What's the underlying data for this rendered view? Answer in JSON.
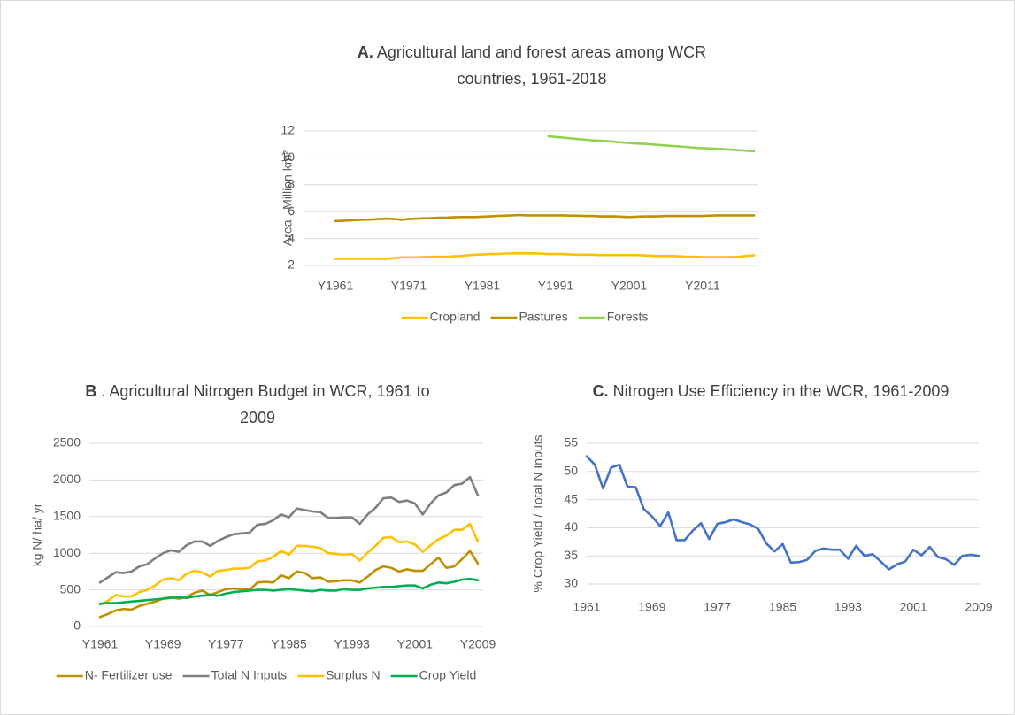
{
  "chart_data": [
    {
      "type": "line",
      "panel": "A.",
      "title": "Agricultural land and forest areas among WCR countries, 1961-2018",
      "ylabel": "Area , Million km²",
      "categories": [
        "Y1961",
        null,
        null,
        null,
        null,
        null,
        null,
        null,
        null,
        null,
        "Y1971",
        null,
        null,
        null,
        null,
        null,
        null,
        null,
        null,
        null,
        "Y1981",
        null,
        null,
        null,
        null,
        null,
        null,
        null,
        null,
        null,
        "Y1991",
        null,
        null,
        null,
        null,
        null,
        null,
        null,
        null,
        null,
        "Y2001",
        null,
        null,
        null,
        null,
        null,
        null,
        null,
        null,
        null,
        "Y2011",
        null,
        null,
        null,
        null,
        null,
        null,
        null
      ],
      "ylim": [
        2,
        12
      ],
      "yticks": [
        2,
        4,
        6,
        8,
        10,
        12
      ],
      "grid": true,
      "legend": "bottom",
      "series": [
        {
          "name": "Cropland",
          "color": "#ffc000",
          "values": [
            2.5,
            2.5,
            2.5,
            2.5,
            2.5,
            2.5,
            2.5,
            2.5,
            2.55,
            2.6,
            2.6,
            2.6,
            2.62,
            2.65,
            2.65,
            2.65,
            2.68,
            2.7,
            2.75,
            2.8,
            2.82,
            2.85,
            2.85,
            2.88,
            2.9,
            2.9,
            2.9,
            2.9,
            2.88,
            2.85,
            2.85,
            2.85,
            2.82,
            2.8,
            2.8,
            2.8,
            2.78,
            2.78,
            2.78,
            2.78,
            2.78,
            2.78,
            2.75,
            2.72,
            2.7,
            2.7,
            2.7,
            2.68,
            2.65,
            2.65,
            2.62,
            2.62,
            2.62,
            2.62,
            2.62,
            2.65,
            2.72,
            2.75
          ]
        },
        {
          "name": "Pastures",
          "color": "#bf9000",
          "values": [
            5.3,
            5.32,
            5.35,
            5.38,
            5.4,
            5.42,
            5.45,
            5.48,
            5.45,
            5.4,
            5.45,
            5.48,
            5.5,
            5.52,
            5.55,
            5.55,
            5.58,
            5.6,
            5.6,
            5.6,
            5.62,
            5.65,
            5.68,
            5.7,
            5.72,
            5.75,
            5.72,
            5.72,
            5.72,
            5.72,
            5.72,
            5.72,
            5.7,
            5.7,
            5.68,
            5.68,
            5.65,
            5.65,
            5.65,
            5.62,
            5.6,
            5.62,
            5.65,
            5.65,
            5.65,
            5.68,
            5.68,
            5.68,
            5.68,
            5.68,
            5.68,
            5.7,
            5.72,
            5.72,
            5.72,
            5.72,
            5.72,
            5.72
          ]
        },
        {
          "name": "Forests",
          "color": "#92d050",
          "values": [
            null,
            null,
            null,
            null,
            null,
            null,
            null,
            null,
            null,
            null,
            null,
            null,
            null,
            null,
            null,
            null,
            null,
            null,
            null,
            null,
            null,
            null,
            null,
            null,
            null,
            null,
            null,
            null,
            null,
            11.6,
            11.55,
            11.5,
            11.45,
            11.4,
            11.35,
            11.3,
            11.27,
            11.24,
            11.2,
            11.15,
            11.1,
            11.07,
            11.04,
            11.0,
            10.96,
            10.92,
            10.88,
            10.84,
            10.8,
            10.75,
            10.72,
            10.7,
            10.67,
            10.64,
            10.6,
            10.57,
            10.53,
            10.5
          ]
        }
      ]
    },
    {
      "type": "line",
      "panel": "B",
      "title": ". Agricultural Nitrogen Budget in WCR, 1961 to 2009",
      "ylabel": "kg N/ ha/ yr",
      "categories": [
        "Y1961",
        null,
        null,
        null,
        null,
        null,
        null,
        null,
        "Y1969",
        null,
        null,
        null,
        null,
        null,
        null,
        null,
        "Y1977",
        null,
        null,
        null,
        null,
        null,
        null,
        null,
        "Y1985",
        null,
        null,
        null,
        null,
        null,
        null,
        null,
        "Y1993",
        null,
        null,
        null,
        null,
        null,
        null,
        null,
        "Y2001",
        null,
        null,
        null,
        null,
        null,
        null,
        null,
        "Y2009"
      ],
      "ylim": [
        0,
        2500
      ],
      "yticks": [
        0,
        500,
        1000,
        1500,
        2000,
        2500
      ],
      "grid": true,
      "legend": "bottom",
      "series": [
        {
          "name": "N- Fertilizer use",
          "color": "#bf9000",
          "values": [
            130,
            170,
            220,
            240,
            230,
            280,
            310,
            340,
            380,
            400,
            380,
            400,
            460,
            490,
            430,
            470,
            510,
            520,
            510,
            500,
            600,
            610,
            600,
            700,
            660,
            750,
            730,
            660,
            670,
            610,
            620,
            630,
            630,
            600,
            680,
            770,
            820,
            800,
            750,
            780,
            760,
            760,
            850,
            940,
            800,
            820,
            920,
            1030,
            860
          ]
        },
        {
          "name": "Total N Inputs",
          "color": "#7f7f7f",
          "values": [
            600,
            670,
            740,
            730,
            750,
            820,
            850,
            930,
            1000,
            1040,
            1020,
            1110,
            1160,
            1160,
            1100,
            1170,
            1220,
            1260,
            1270,
            1280,
            1390,
            1400,
            1450,
            1530,
            1490,
            1610,
            1590,
            1570,
            1560,
            1480,
            1480,
            1490,
            1490,
            1400,
            1530,
            1620,
            1750,
            1760,
            1700,
            1720,
            1680,
            1530,
            1680,
            1790,
            1830,
            1930,
            1950,
            2040,
            1790
          ]
        },
        {
          "name": "Surplus N",
          "color": "#ffc000",
          "values": [
            300,
            350,
            430,
            410,
            410,
            470,
            500,
            560,
            640,
            660,
            630,
            720,
            760,
            740,
            680,
            760,
            770,
            790,
            790,
            800,
            890,
            900,
            950,
            1030,
            980,
            1100,
            1100,
            1090,
            1070,
            1000,
            990,
            980,
            990,
            900,
            1010,
            1100,
            1210,
            1220,
            1150,
            1160,
            1120,
            1020,
            1110,
            1190,
            1240,
            1320,
            1320,
            1400,
            1160
          ]
        },
        {
          "name": "Crop Yield",
          "color": "#00b050",
          "values": [
            310,
            320,
            320,
            330,
            340,
            350,
            360,
            370,
            380,
            390,
            400,
            390,
            410,
            420,
            430,
            420,
            450,
            470,
            480,
            490,
            500,
            500,
            490,
            500,
            510,
            500,
            490,
            480,
            500,
            490,
            490,
            510,
            500,
            500,
            520,
            530,
            540,
            540,
            550,
            560,
            560,
            520,
            570,
            600,
            590,
            610,
            640,
            650,
            630
          ]
        }
      ]
    },
    {
      "type": "line",
      "panel": "C.",
      "title": "Nitrogen Use Efficiency in the WCR, 1961-2009",
      "ylabel": "% Crop Yield / Total N Inputs",
      "x": [
        1961,
        1962,
        1963,
        1964,
        1965,
        1966,
        1967,
        1968,
        1969,
        1970,
        1971,
        1972,
        1973,
        1974,
        1975,
        1976,
        1977,
        1978,
        1979,
        1980,
        1981,
        1982,
        1983,
        1984,
        1985,
        1986,
        1987,
        1988,
        1989,
        1990,
        1991,
        1992,
        1993,
        1994,
        1995,
        1996,
        1997,
        1998,
        1999,
        2000,
        2001,
        2002,
        2003,
        2004,
        2005,
        2006,
        2007,
        2008,
        2009
      ],
      "xlim": [
        1961,
        2009
      ],
      "xticks": [
        1961,
        1969,
        1977,
        1985,
        1993,
        2001,
        2009
      ],
      "ylim": [
        30,
        55
      ],
      "yticks": [
        30,
        35,
        40,
        45,
        50,
        55
      ],
      "grid": true,
      "series": [
        {
          "color": "#4472c4",
          "values": [
            52.7,
            51.2,
            47,
            50.7,
            51.2,
            47.3,
            47.2,
            43.3,
            42,
            40.3,
            42.7,
            37.8,
            37.8,
            39.5,
            40.8,
            38,
            40.7,
            41,
            41.5,
            41,
            40.6,
            39.8,
            37.2,
            35.8,
            37.1,
            33.8,
            33.9,
            34.3,
            35.9,
            36.3,
            36.1,
            36.1,
            34.5,
            36.8,
            35,
            35.3,
            34,
            32.6,
            33.5,
            34,
            36.1,
            35.1,
            36.6,
            34.8,
            34.4,
            33.4,
            35,
            35.2,
            35
          ]
        }
      ]
    }
  ]
}
